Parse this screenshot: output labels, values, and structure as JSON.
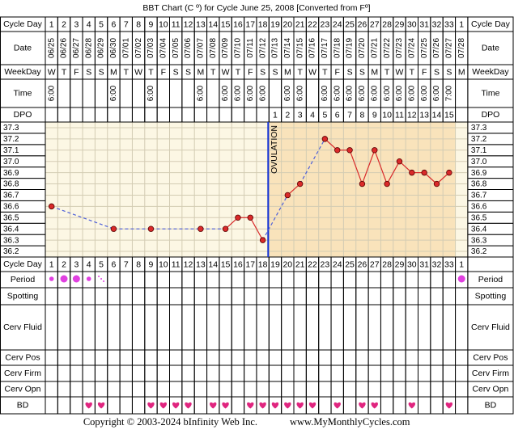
{
  "title": "BBT Chart (C º) for Cycle June 25, 2008  [Converted from Fº]",
  "row_labels": {
    "cycle_day": "Cycle Day",
    "date": "Date",
    "weekday": "WeekDay",
    "time": "Time",
    "dpo": "DPO",
    "period": "Period",
    "spotting": "Spotting",
    "cerv_fluid": "Cerv Fluid",
    "cerv_pos": "Cerv Pos",
    "cerv_firm": "Cerv Firm",
    "cerv_opn": "Cerv Opn",
    "bd": "BD"
  },
  "cycle_days": [
    1,
    2,
    3,
    4,
    5,
    6,
    7,
    8,
    9,
    10,
    11,
    12,
    13,
    14,
    15,
    16,
    17,
    18,
    19,
    20,
    21,
    22,
    23,
    24,
    25,
    26,
    27,
    28,
    29,
    30,
    31,
    32,
    33,
    1
  ],
  "weekdays": [
    "W",
    "T",
    "F",
    "S",
    "S",
    "M",
    "T",
    "W",
    "T",
    "F",
    "S",
    "S",
    "M",
    "T",
    "W",
    "T",
    "F",
    "S",
    "S",
    "M",
    "T",
    "W",
    "T",
    "F",
    "S",
    "S",
    "M",
    "T",
    "W",
    "T",
    "F",
    "S",
    "S",
    "M"
  ],
  "times": [
    "6:00",
    null,
    null,
    null,
    null,
    "6:00",
    null,
    null,
    "6:00",
    null,
    null,
    null,
    "6:00",
    null,
    "6:00",
    "6:00",
    "6:00",
    "6:00",
    null,
    "6:00",
    "6:00",
    null,
    "6:00",
    "6:00",
    "6:00",
    "6:00",
    "6:00",
    "6:00",
    "6:00",
    "6:00",
    "6:00",
    "6:00",
    "7:00",
    null
  ],
  "dpo": [
    null,
    null,
    null,
    null,
    null,
    null,
    null,
    null,
    null,
    null,
    null,
    null,
    null,
    null,
    null,
    null,
    null,
    null,
    1,
    2,
    3,
    4,
    5,
    6,
    7,
    8,
    9,
    10,
    11,
    12,
    13,
    14,
    15,
    null
  ],
  "period": [
    "light",
    "heavy",
    "heavy",
    "light",
    "spotting",
    null,
    null,
    null,
    null,
    null,
    null,
    null,
    null,
    null,
    null,
    null,
    null,
    null,
    null,
    null,
    null,
    null,
    null,
    null,
    null,
    null,
    null,
    null,
    null,
    null,
    null,
    null,
    null,
    "heavy"
  ],
  "bd": [
    null,
    null,
    null,
    true,
    true,
    null,
    null,
    null,
    true,
    true,
    true,
    true,
    null,
    true,
    true,
    null,
    true,
    true,
    true,
    true,
    true,
    true,
    null,
    true,
    null,
    true,
    true,
    null,
    null,
    true,
    null,
    null,
    true,
    null
  ],
  "ovulation_label": "OVULATION",
  "copyright": "Copyright © 2003-2024 bInfinity Web Inc.",
  "website": "www.MyMonthlyCycles.com",
  "chart_data": {
    "type": "line",
    "categories": [
      "06/25",
      "06/26",
      "06/27",
      "06/28",
      "06/29",
      "06/30",
      "07/01",
      "07/02",
      "07/03",
      "07/04",
      "07/05",
      "07/06",
      "07/07",
      "07/08",
      "07/09",
      "07/10",
      "07/11",
      "07/12",
      "07/13",
      "07/14",
      "07/15",
      "07/16",
      "07/17",
      "07/18",
      "07/19",
      "07/20",
      "07/21",
      "07/22",
      "07/23",
      "07/24",
      "07/25",
      "07/26",
      "07/27",
      "07/28"
    ],
    "values": [
      36.6,
      null,
      null,
      null,
      null,
      36.4,
      null,
      null,
      36.4,
      null,
      null,
      null,
      36.4,
      null,
      36.4,
      36.5,
      36.5,
      36.3,
      null,
      36.7,
      36.8,
      null,
      37.2,
      37.1,
      37.1,
      36.8,
      37.1,
      36.8,
      37.0,
      36.9,
      36.9,
      36.8,
      36.9,
      null
    ],
    "ylim": [
      36.15,
      37.35
    ],
    "yticks": [
      36.2,
      36.3,
      36.4,
      36.5,
      36.6,
      36.7,
      36.8,
      36.9,
      {
        "value": 37,
        "label": "37.0"
      },
      37.1,
      37.2,
      37.3
    ],
    "color": "#d92a2a",
    "gap_color": "#4d5fd9",
    "ovulation_color": "#1433d6",
    "grid": true
  }
}
